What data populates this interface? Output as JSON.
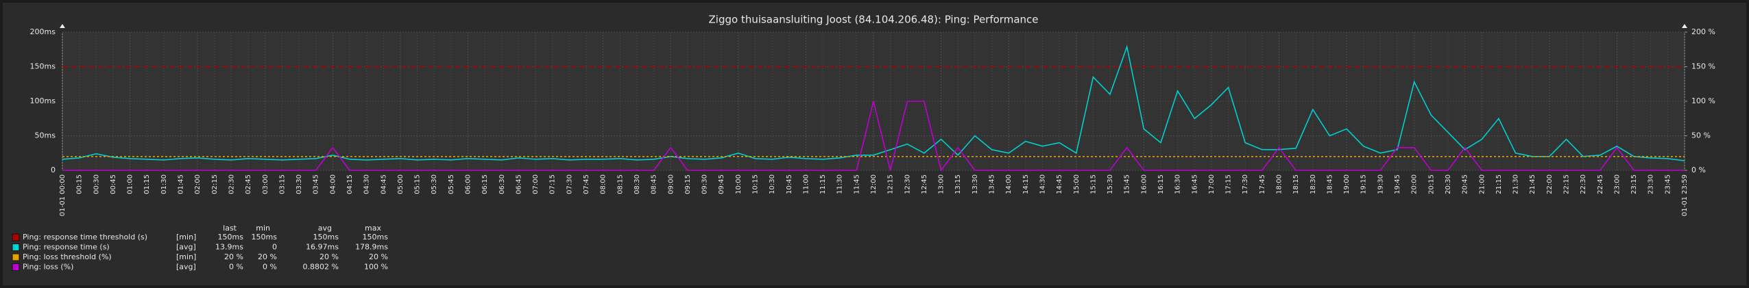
{
  "chart_data": {
    "type": "line",
    "title": "Ziggo thuisaansluiting Joost (84.104.206.48): Ping: Performance",
    "categories": [
      "01-01 00:00",
      "00:15",
      "00:30",
      "00:45",
      "01:00",
      "01:15",
      "01:30",
      "01:45",
      "02:00",
      "02:15",
      "02:30",
      "02:45",
      "03:00",
      "03:15",
      "03:30",
      "03:45",
      "04:00",
      "04:15",
      "04:30",
      "04:45",
      "05:00",
      "05:15",
      "05:30",
      "05:45",
      "06:00",
      "06:15",
      "06:30",
      "06:45",
      "07:00",
      "07:15",
      "07:30",
      "07:45",
      "08:00",
      "08:15",
      "08:30",
      "08:45",
      "09:00",
      "09:15",
      "09:30",
      "09:45",
      "10:00",
      "10:15",
      "10:30",
      "10:45",
      "11:00",
      "11:15",
      "11:30",
      "11:45",
      "12:00",
      "12:15",
      "12:30",
      "12:45",
      "13:00",
      "13:15",
      "13:30",
      "13:45",
      "14:00",
      "14:15",
      "14:30",
      "14:45",
      "15:00",
      "15:15",
      "15:30",
      "15:45",
      "16:00",
      "16:15",
      "16:30",
      "16:45",
      "17:00",
      "17:15",
      "17:30",
      "17:45",
      "18:00",
      "18:15",
      "18:30",
      "18:45",
      "19:00",
      "19:15",
      "19:30",
      "19:45",
      "20:00",
      "20:15",
      "20:30",
      "20:45",
      "21:00",
      "21:15",
      "21:30",
      "21:45",
      "22:00",
      "22:15",
      "22:30",
      "22:45",
      "23:00",
      "23:15",
      "23:30",
      "23:45",
      "01-01 23:59"
    ],
    "ylim": [
      0,
      200
    ],
    "yticks": [
      0,
      {
        "value": 50,
        "label": "50ms"
      },
      {
        "value": 100,
        "label": "100ms"
      },
      {
        "value": 150,
        "label": "150ms"
      },
      {
        "value": 200,
        "label": "200ms"
      }
    ],
    "y2lim": [
      0,
      200
    ],
    "y2ticks": [
      {
        "value": 0,
        "label": "0 %"
      },
      {
        "value": 50,
        "label": "50 %"
      },
      {
        "value": 100,
        "label": "100 %"
      },
      {
        "value": 150,
        "label": "150 %"
      },
      {
        "value": 200,
        "label": "200 %"
      }
    ],
    "grid": true,
    "major_tick_color": "#e0584f",
    "legend_headers": [
      "last",
      "min",
      "avg",
      "max"
    ],
    "series": [
      {
        "name": "Ping: response time threshold (s)",
        "color": "#b00000",
        "dash": "8,5",
        "function": "[min]",
        "stats": [
          "150ms",
          "150ms",
          "150ms",
          "150ms"
        ],
        "values": [
          150,
          150,
          150,
          150,
          150,
          150,
          150,
          150,
          150,
          150,
          150,
          150,
          150,
          150,
          150,
          150,
          150,
          150,
          150,
          150,
          150,
          150,
          150,
          150,
          150,
          150,
          150,
          150,
          150,
          150,
          150,
          150,
          150,
          150,
          150,
          150,
          150,
          150,
          150,
          150,
          150,
          150,
          150,
          150,
          150,
          150,
          150,
          150,
          150,
          150,
          150,
          150,
          150,
          150,
          150,
          150,
          150,
          150,
          150,
          150,
          150,
          150,
          150,
          150,
          150,
          150,
          150,
          150,
          150,
          150,
          150,
          150,
          150,
          150,
          150,
          150,
          150,
          150,
          150,
          150,
          150,
          150,
          150,
          150,
          150,
          150,
          150,
          150,
          150,
          150,
          150,
          150,
          150,
          150,
          150,
          150,
          150
        ]
      },
      {
        "name": "Ping: response time (s)",
        "color": "#00d0d0",
        "function": "[avg]",
        "stats": [
          "13.9ms",
          "0",
          "16.97ms",
          "178.9ms"
        ],
        "values": [
          16,
          18,
          24,
          19,
          17,
          16,
          15,
          17,
          18,
          16,
          15,
          17,
          16,
          15,
          16,
          17,
          22,
          16,
          15,
          16,
          17,
          15,
          16,
          15,
          17,
          16,
          15,
          18,
          16,
          17,
          15,
          16,
          16,
          17,
          15,
          16,
          20,
          17,
          16,
          18,
          25,
          17,
          16,
          19,
          17,
          16,
          18,
          22,
          22,
          30,
          38,
          25,
          45,
          22,
          50,
          30,
          25,
          42,
          35,
          40,
          25,
          135,
          110,
          178.9,
          60,
          40,
          115,
          75,
          95,
          120,
          40,
          30,
          30,
          32,
          88,
          50,
          60,
          35,
          25,
          30,
          128,
          80,
          55,
          30,
          45,
          75,
          25,
          20,
          20,
          45,
          20,
          22,
          35,
          20,
          18,
          17,
          13.9
        ]
      },
      {
        "name": "Ping: loss threshold (%)",
        "color": "#e0a000",
        "dash": "3,3",
        "axis": "y2",
        "function": "[min]",
        "stats": [
          "20 %",
          "20 %",
          "20 %",
          "20 %"
        ],
        "values": [
          20,
          20,
          20,
          20,
          20,
          20,
          20,
          20,
          20,
          20,
          20,
          20,
          20,
          20,
          20,
          20,
          20,
          20,
          20,
          20,
          20,
          20,
          20,
          20,
          20,
          20,
          20,
          20,
          20,
          20,
          20,
          20,
          20,
          20,
          20,
          20,
          20,
          20,
          20,
          20,
          20,
          20,
          20,
          20,
          20,
          20,
          20,
          20,
          20,
          20,
          20,
          20,
          20,
          20,
          20,
          20,
          20,
          20,
          20,
          20,
          20,
          20,
          20,
          20,
          20,
          20,
          20,
          20,
          20,
          20,
          20,
          20,
          20,
          20,
          20,
          20,
          20,
          20,
          20,
          20,
          20,
          20,
          20,
          20,
          20,
          20,
          20,
          20,
          20,
          20,
          20,
          20,
          20,
          20,
          20,
          20,
          20
        ]
      },
      {
        "name": "Ping: loss (%)",
        "color": "#c000d0",
        "axis": "y2",
        "function": "[avg]",
        "stats": [
          "0 %",
          "0 %",
          "0.8802 %",
          "100 %"
        ],
        "values": [
          0,
          0,
          0,
          0,
          0,
          0,
          0,
          0,
          0,
          0,
          0,
          0,
          0,
          0,
          0,
          0,
          33,
          0,
          0,
          0,
          0,
          0,
          0,
          0,
          0,
          0,
          0,
          0,
          0,
          0,
          0,
          0,
          0,
          0,
          0,
          0,
          33,
          0,
          0,
          0,
          0,
          0,
          0,
          0,
          0,
          0,
          0,
          0,
          100,
          0,
          100,
          100,
          0,
          33,
          0,
          0,
          0,
          0,
          0,
          0,
          0,
          0,
          0,
          33,
          0,
          0,
          0,
          0,
          0,
          0,
          0,
          0,
          33,
          0,
          0,
          0,
          0,
          0,
          0,
          33,
          33,
          0,
          0,
          33,
          0,
          0,
          0,
          0,
          0,
          0,
          0,
          0,
          33,
          0,
          0,
          0,
          0
        ]
      }
    ]
  }
}
